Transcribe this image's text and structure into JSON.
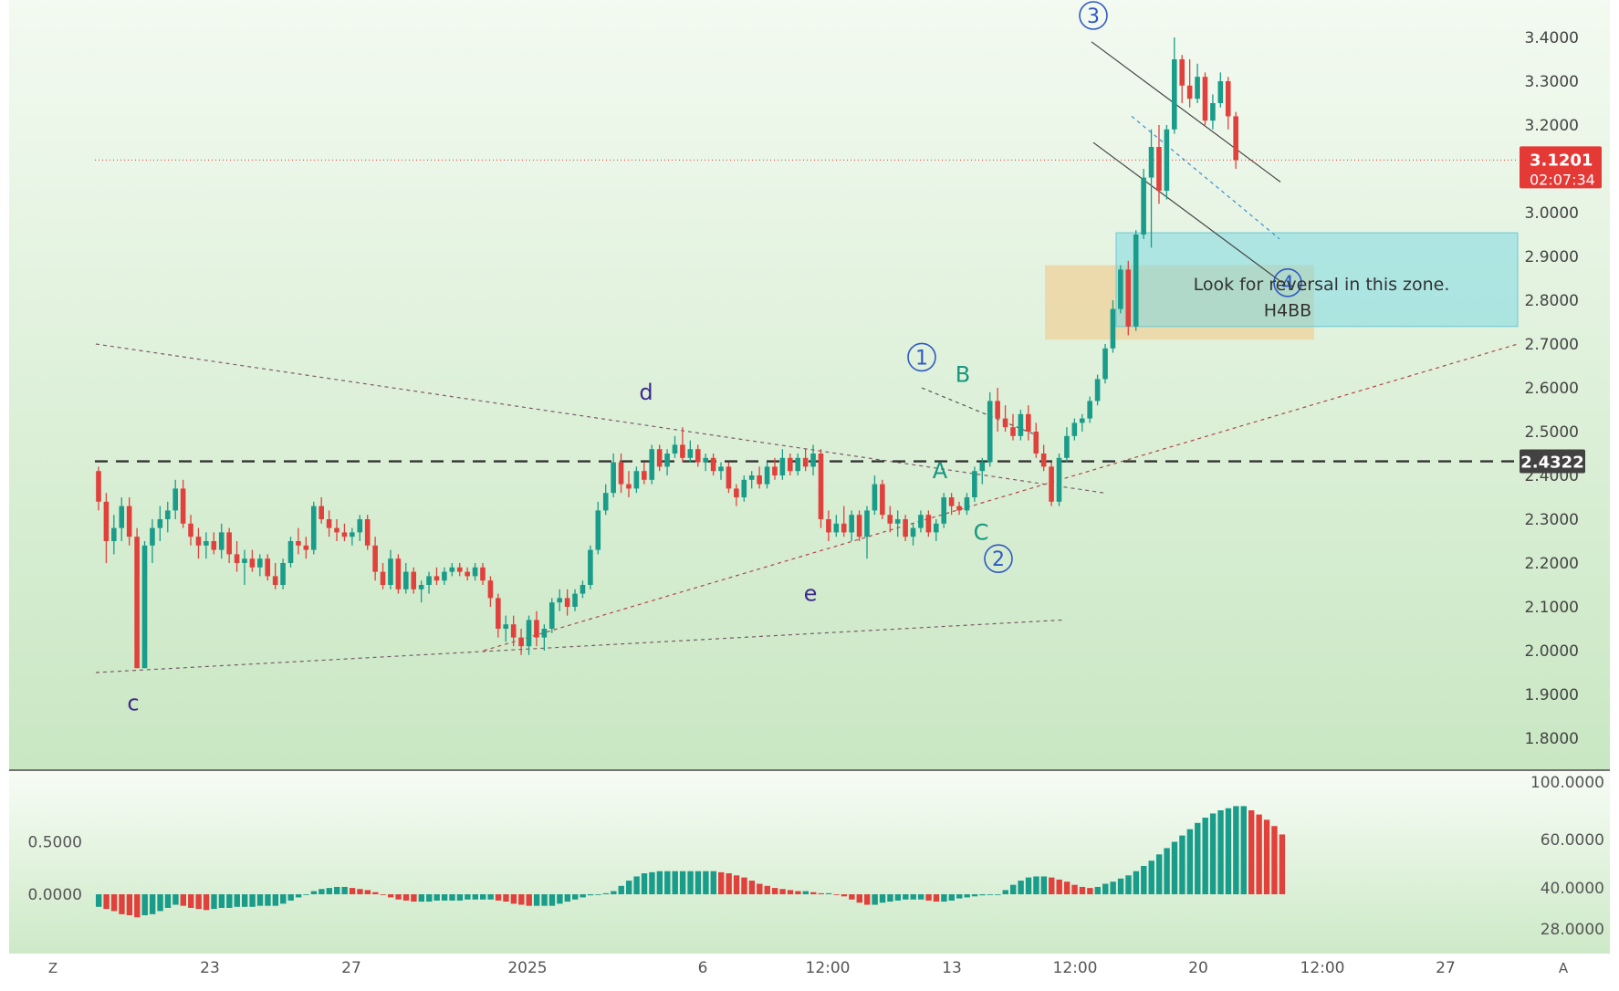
{
  "chart_data": [
    {
      "type": "candlestick",
      "pane": "price",
      "y_axis": {
        "ylim": [
          1.72,
          3.45
        ],
        "ticks": [
          "1.8000",
          "1.9000",
          "2.0000",
          "2.1000",
          "2.2000",
          "2.3000",
          "2.4000",
          "2.5000",
          "2.6000",
          "2.7000",
          "2.8000",
          "2.9000",
          "3.0000",
          "3.1000",
          "3.2000",
          "3.3000",
          "3.4000"
        ]
      },
      "x_axis": {
        "ticks": [
          "23",
          "27",
          "2025",
          "6",
          "12:00",
          "13",
          "12:00",
          "20",
          "12:00",
          "27"
        ]
      },
      "last_price": {
        "value": "3.1201",
        "countdown": "02:07:34",
        "color": "#e53935"
      },
      "horizontal_level": {
        "value": "2.4322",
        "style": "dashed"
      },
      "zones": [
        {
          "label": "Look for reversal in this zone.",
          "color": "#7fd8e2"
        },
        {
          "label": "H4BB",
          "color": "#f2c98b"
        }
      ],
      "wave_labels": [
        {
          "text": "c",
          "price": 1.88
        },
        {
          "text": "d",
          "price": 2.59
        },
        {
          "text": "e",
          "price": 2.13
        },
        {
          "text": "1",
          "price": 2.67,
          "circled": true
        },
        {
          "text": "B",
          "price": 2.63
        },
        {
          "text": "A",
          "price": 2.41
        },
        {
          "text": "C",
          "price": 2.27
        },
        {
          "text": "2",
          "price": 2.21,
          "circled": true
        },
        {
          "text": "3",
          "price": 3.45,
          "circled": true
        },
        {
          "text": "4",
          "price": 2.84,
          "circled": true
        }
      ],
      "colors": {
        "up": "#1a9c8a",
        "down": "#e0413c"
      },
      "candles": [
        [
          2.41,
          2.42,
          2.32,
          2.34
        ],
        [
          2.34,
          2.36,
          2.2,
          2.25
        ],
        [
          2.25,
          2.31,
          2.22,
          2.28
        ],
        [
          2.28,
          2.35,
          2.25,
          2.33
        ],
        [
          2.33,
          2.35,
          2.24,
          2.26
        ],
        [
          2.26,
          2.28,
          1.96,
          1.96
        ],
        [
          1.96,
          2.25,
          1.96,
          2.24
        ],
        [
          2.24,
          2.3,
          2.2,
          2.28
        ],
        [
          2.28,
          2.33,
          2.25,
          2.3
        ],
        [
          2.3,
          2.34,
          2.27,
          2.32
        ],
        [
          2.32,
          2.39,
          2.3,
          2.37
        ],
        [
          2.37,
          2.39,
          2.28,
          2.29
        ],
        [
          2.29,
          2.31,
          2.24,
          2.26
        ],
        [
          2.26,
          2.28,
          2.21,
          2.24
        ],
        [
          2.24,
          2.27,
          2.21,
          2.25
        ],
        [
          2.25,
          2.27,
          2.22,
          2.23
        ],
        [
          2.23,
          2.29,
          2.21,
          2.27
        ],
        [
          2.27,
          2.28,
          2.2,
          2.22
        ],
        [
          2.22,
          2.25,
          2.18,
          2.2
        ],
        [
          2.2,
          2.23,
          2.15,
          2.21
        ],
        [
          2.21,
          2.23,
          2.18,
          2.19
        ],
        [
          2.19,
          2.22,
          2.17,
          2.21
        ],
        [
          2.21,
          2.22,
          2.16,
          2.17
        ],
        [
          2.17,
          2.2,
          2.14,
          2.15
        ],
        [
          2.15,
          2.21,
          2.14,
          2.2
        ],
        [
          2.2,
          2.26,
          2.19,
          2.25
        ],
        [
          2.25,
          2.28,
          2.22,
          2.24
        ],
        [
          2.24,
          2.26,
          2.21,
          2.23
        ],
        [
          2.23,
          2.34,
          2.22,
          2.33
        ],
        [
          2.33,
          2.35,
          2.29,
          2.3
        ],
        [
          2.3,
          2.32,
          2.26,
          2.28
        ],
        [
          2.28,
          2.3,
          2.25,
          2.27
        ],
        [
          2.27,
          2.29,
          2.25,
          2.26
        ],
        [
          2.26,
          2.28,
          2.24,
          2.27
        ],
        [
          2.27,
          2.31,
          2.25,
          2.3
        ],
        [
          2.3,
          2.31,
          2.23,
          2.24
        ],
        [
          2.24,
          2.26,
          2.16,
          2.18
        ],
        [
          2.18,
          2.2,
          2.14,
          2.15
        ],
        [
          2.15,
          2.23,
          2.14,
          2.21
        ],
        [
          2.21,
          2.22,
          2.13,
          2.14
        ],
        [
          2.14,
          2.2,
          2.13,
          2.18
        ],
        [
          2.18,
          2.19,
          2.13,
          2.14
        ],
        [
          2.14,
          2.16,
          2.11,
          2.15
        ],
        [
          2.15,
          2.18,
          2.13,
          2.17
        ],
        [
          2.17,
          2.19,
          2.15,
          2.16
        ],
        [
          2.16,
          2.19,
          2.15,
          2.18
        ],
        [
          2.18,
          2.2,
          2.17,
          2.19
        ],
        [
          2.19,
          2.2,
          2.17,
          2.18
        ],
        [
          2.18,
          2.19,
          2.16,
          2.17
        ],
        [
          2.17,
          2.2,
          2.16,
          2.19
        ],
        [
          2.19,
          2.2,
          2.15,
          2.16
        ],
        [
          2.16,
          2.17,
          2.1,
          2.12
        ],
        [
          2.12,
          2.13,
          2.03,
          2.05
        ],
        [
          2.05,
          2.08,
          2.02,
          2.06
        ],
        [
          2.06,
          2.08,
          2.01,
          2.03
        ],
        [
          2.03,
          2.05,
          1.99,
          2.01
        ],
        [
          2.01,
          2.08,
          1.99,
          2.07
        ],
        [
          2.07,
          2.09,
          2.01,
          2.03
        ],
        [
          2.03,
          2.06,
          2.0,
          2.05
        ],
        [
          2.05,
          2.12,
          2.04,
          2.11
        ],
        [
          2.11,
          2.14,
          2.09,
          2.12
        ],
        [
          2.12,
          2.14,
          2.08,
          2.1
        ],
        [
          2.1,
          2.14,
          2.09,
          2.13
        ],
        [
          2.13,
          2.16,
          2.12,
          2.15
        ],
        [
          2.15,
          2.24,
          2.14,
          2.23
        ],
        [
          2.23,
          2.34,
          2.22,
          2.32
        ],
        [
          2.32,
          2.38,
          2.31,
          2.36
        ],
        [
          2.36,
          2.45,
          2.35,
          2.43
        ],
        [
          2.43,
          2.45,
          2.36,
          2.38
        ],
        [
          2.38,
          2.41,
          2.35,
          2.37
        ],
        [
          2.37,
          2.42,
          2.36,
          2.41
        ],
        [
          2.41,
          2.43,
          2.38,
          2.39
        ],
        [
          2.39,
          2.47,
          2.38,
          2.46
        ],
        [
          2.46,
          2.47,
          2.41,
          2.42
        ],
        [
          2.42,
          2.46,
          2.4,
          2.45
        ],
        [
          2.45,
          2.49,
          2.44,
          2.47
        ],
        [
          2.47,
          2.51,
          2.43,
          2.44
        ],
        [
          2.44,
          2.48,
          2.43,
          2.46
        ],
        [
          2.46,
          2.47,
          2.42,
          2.43
        ],
        [
          2.43,
          2.45,
          2.41,
          2.44
        ],
        [
          2.44,
          2.45,
          2.4,
          2.41
        ],
        [
          2.41,
          2.43,
          2.39,
          2.42
        ],
        [
          2.42,
          2.43,
          2.36,
          2.37
        ],
        [
          2.37,
          2.38,
          2.33,
          2.35
        ],
        [
          2.35,
          2.4,
          2.34,
          2.39
        ],
        [
          2.39,
          2.41,
          2.37,
          2.4
        ],
        [
          2.4,
          2.42,
          2.37,
          2.38
        ],
        [
          2.38,
          2.43,
          2.37,
          2.42
        ],
        [
          2.42,
          2.44,
          2.39,
          2.4
        ],
        [
          2.4,
          2.46,
          2.39,
          2.44
        ],
        [
          2.44,
          2.45,
          2.4,
          2.41
        ],
        [
          2.41,
          2.45,
          2.4,
          2.44
        ],
        [
          2.44,
          2.46,
          2.41,
          2.42
        ],
        [
          2.42,
          2.47,
          2.4,
          2.45
        ],
        [
          2.45,
          2.46,
          2.28,
          2.3
        ],
        [
          2.3,
          2.32,
          2.25,
          2.27
        ],
        [
          2.27,
          2.31,
          2.26,
          2.29
        ],
        [
          2.29,
          2.33,
          2.26,
          2.27
        ],
        [
          2.27,
          2.32,
          2.25,
          2.31
        ],
        [
          2.31,
          2.32,
          2.25,
          2.26
        ],
        [
          2.26,
          2.33,
          2.21,
          2.32
        ],
        [
          2.32,
          2.4,
          2.31,
          2.38
        ],
        [
          2.38,
          2.39,
          2.3,
          2.31
        ],
        [
          2.31,
          2.33,
          2.27,
          2.29
        ],
        [
          2.29,
          2.32,
          2.26,
          2.3
        ],
        [
          2.3,
          2.31,
          2.25,
          2.26
        ],
        [
          2.26,
          2.29,
          2.24,
          2.28
        ],
        [
          2.28,
          2.32,
          2.27,
          2.31
        ],
        [
          2.31,
          2.32,
          2.26,
          2.27
        ],
        [
          2.27,
          2.3,
          2.25,
          2.29
        ],
        [
          2.29,
          2.36,
          2.28,
          2.35
        ],
        [
          2.35,
          2.36,
          2.31,
          2.33
        ],
        [
          2.33,
          2.34,
          2.31,
          2.32
        ],
        [
          2.32,
          2.36,
          2.31,
          2.35
        ],
        [
          2.35,
          2.42,
          2.34,
          2.41
        ],
        [
          2.41,
          2.44,
          2.38,
          2.43
        ],
        [
          2.43,
          2.59,
          2.42,
          2.57
        ],
        [
          2.57,
          2.6,
          2.5,
          2.53
        ],
        [
          2.53,
          2.56,
          2.5,
          2.51
        ],
        [
          2.51,
          2.54,
          2.48,
          2.49
        ],
        [
          2.49,
          2.55,
          2.48,
          2.54
        ],
        [
          2.54,
          2.56,
          2.48,
          2.5
        ],
        [
          2.5,
          2.52,
          2.44,
          2.45
        ],
        [
          2.45,
          2.47,
          2.41,
          2.42
        ],
        [
          2.42,
          2.43,
          2.33,
          2.34
        ],
        [
          2.34,
          2.45,
          2.33,
          2.44
        ],
        [
          2.44,
          2.51,
          2.43,
          2.49
        ],
        [
          2.49,
          2.53,
          2.48,
          2.52
        ],
        [
          2.52,
          2.54,
          2.5,
          2.53
        ],
        [
          2.53,
          2.58,
          2.52,
          2.57
        ],
        [
          2.57,
          2.63,
          2.56,
          2.62
        ],
        [
          2.62,
          2.7,
          2.61,
          2.69
        ],
        [
          2.69,
          2.8,
          2.68,
          2.78
        ],
        [
          2.78,
          2.88,
          2.77,
          2.87
        ],
        [
          2.87,
          2.89,
          2.72,
          2.74
        ],
        [
          2.74,
          2.96,
          2.73,
          2.95
        ],
        [
          2.95,
          3.1,
          2.94,
          3.08
        ],
        [
          3.08,
          3.19,
          2.92,
          3.15
        ],
        [
          3.15,
          3.2,
          3.02,
          3.05
        ],
        [
          3.05,
          3.2,
          3.03,
          3.19
        ],
        [
          3.19,
          3.4,
          3.18,
          3.35
        ],
        [
          3.35,
          3.36,
          3.25,
          3.29
        ],
        [
          3.29,
          3.35,
          3.24,
          3.26
        ],
        [
          3.26,
          3.34,
          3.25,
          3.31
        ],
        [
          3.31,
          3.32,
          3.2,
          3.21
        ],
        [
          3.21,
          3.27,
          3.19,
          3.25
        ],
        [
          3.25,
          3.32,
          3.24,
          3.3
        ],
        [
          3.3,
          3.31,
          3.19,
          3.22
        ],
        [
          3.22,
          3.23,
          3.1,
          3.12
        ]
      ]
    },
    {
      "type": "histogram",
      "pane": "oscillator",
      "left_axis_ticks": [
        "0.0000",
        "0.5000"
      ],
      "right_axis_ticks": [
        "28.0000",
        "40.0000",
        "60.0000",
        "100.0000"
      ],
      "colors": {
        "up": "#1a9c8a",
        "down": "#e0413c"
      },
      "values": [
        -0.12,
        -0.14,
        -0.16,
        -0.19,
        -0.2,
        -0.22,
        -0.2,
        -0.19,
        -0.16,
        -0.13,
        -0.1,
        -0.11,
        -0.13,
        -0.14,
        -0.15,
        -0.14,
        -0.13,
        -0.13,
        -0.12,
        -0.12,
        -0.12,
        -0.11,
        -0.11,
        -0.11,
        -0.09,
        -0.06,
        -0.03,
        0.0,
        0.03,
        0.05,
        0.06,
        0.07,
        0.07,
        0.06,
        0.05,
        0.04,
        0.02,
        0.0,
        -0.03,
        -0.05,
        -0.06,
        -0.07,
        -0.07,
        -0.07,
        -0.06,
        -0.06,
        -0.06,
        -0.06,
        -0.05,
        -0.05,
        -0.05,
        -0.05,
        -0.06,
        -0.07,
        -0.09,
        -0.1,
        -0.11,
        -0.11,
        -0.11,
        -0.11,
        -0.09,
        -0.07,
        -0.05,
        -0.03,
        -0.01,
        0.0,
        0.01,
        0.03,
        0.08,
        0.13,
        0.17,
        0.2,
        0.21,
        0.22,
        0.22,
        0.22,
        0.22,
        0.22,
        0.22,
        0.22,
        0.22,
        0.21,
        0.2,
        0.18,
        0.16,
        0.13,
        0.1,
        0.08,
        0.06,
        0.05,
        0.04,
        0.03,
        0.03,
        0.02,
        0.01,
        0.01,
        0.0,
        -0.02,
        -0.05,
        -0.08,
        -0.1,
        -0.1,
        -0.08,
        -0.07,
        -0.06,
        -0.05,
        -0.05,
        -0.05,
        -0.06,
        -0.07,
        -0.07,
        -0.06,
        -0.04,
        -0.03,
        -0.02,
        -0.01,
        0.0,
        0.0,
        0.04,
        0.09,
        0.13,
        0.16,
        0.17,
        0.17,
        0.16,
        0.14,
        0.12,
        0.09,
        0.07,
        0.06,
        0.07,
        0.1,
        0.12,
        0.15,
        0.18,
        0.22,
        0.27,
        0.32,
        0.38,
        0.44,
        0.5,
        0.56,
        0.62,
        0.68,
        0.73,
        0.77,
        0.8,
        0.82,
        0.84,
        0.84,
        0.8,
        0.76,
        0.71,
        0.65,
        0.57
      ]
    }
  ],
  "footer": {
    "left_button": "Z",
    "right_button": "A"
  }
}
